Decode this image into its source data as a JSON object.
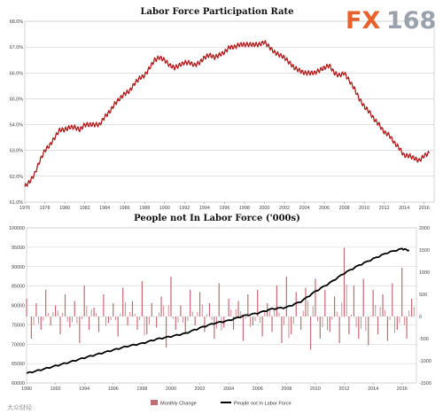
{
  "logo": {
    "fx": "FX",
    "num": "168",
    "fx_color": "#e8612c",
    "num_color": "#9aa3ad"
  },
  "watermark": "大众财经",
  "colors": {
    "series_red": "#b11a1a",
    "bar_red": "#c46a72",
    "line_black": "#000000"
  },
  "chart_data": [
    {
      "type": "line",
      "title": "Labor Force Participation Rate",
      "xlabel": "",
      "ylabel": "",
      "xlim": [
        1976,
        2017
      ],
      "ylim": [
        61.0,
        68.0
      ],
      "x_ticks": [
        "1976",
        "1978",
        "1980",
        "1982",
        "1984",
        "1986",
        "1988",
        "1990",
        "1992",
        "1994",
        "1996",
        "1998",
        "2000",
        "2002",
        "2004",
        "2006",
        "2008",
        "2010",
        "2012",
        "2014",
        "2016"
      ],
      "y_ticks": [
        "61.0%",
        "62.0%",
        "63.0%",
        "64.0%",
        "65.0%",
        "66.0%",
        "67.0%",
        "68.0%"
      ],
      "grid": true,
      "series": [
        {
          "name": "",
          "color": "#b11a1a",
          "x": [
            1976.0,
            1976.5,
            1977.0,
            1977.5,
            1978.0,
            1978.5,
            1979.0,
            1979.5,
            1980.0,
            1980.5,
            1981.0,
            1981.5,
            1982.0,
            1982.5,
            1983.0,
            1983.5,
            1984.0,
            1984.5,
            1985.0,
            1985.5,
            1986.0,
            1986.5,
            1987.0,
            1987.5,
            1988.0,
            1988.5,
            1989.0,
            1989.5,
            1990.0,
            1990.5,
            1991.0,
            1991.5,
            1992.0,
            1992.5,
            1993.0,
            1993.5,
            1994.0,
            1994.5,
            1995.0,
            1995.5,
            1996.0,
            1996.5,
            1997.0,
            1997.5,
            1998.0,
            1998.5,
            1999.0,
            1999.5,
            2000.0,
            2000.5,
            2001.0,
            2001.5,
            2002.0,
            2002.5,
            2003.0,
            2003.5,
            2004.0,
            2004.5,
            2005.0,
            2005.5,
            2006.0,
            2006.5,
            2007.0,
            2007.5,
            2008.0,
            2008.5,
            2009.0,
            2009.5,
            2010.0,
            2010.5,
            2011.0,
            2011.5,
            2012.0,
            2012.5,
            2013.0,
            2013.5,
            2014.0,
            2014.5,
            2015.0,
            2015.5,
            2016.0,
            2016.5
          ],
          "y": [
            61.6,
            61.8,
            62.1,
            62.6,
            63.0,
            63.2,
            63.5,
            63.8,
            63.8,
            63.9,
            63.9,
            63.8,
            64.0,
            64.0,
            64.0,
            64.0,
            64.3,
            64.5,
            64.8,
            65.0,
            65.2,
            65.3,
            65.6,
            65.8,
            65.9,
            66.2,
            66.5,
            66.6,
            66.5,
            66.3,
            66.2,
            66.3,
            66.4,
            66.4,
            66.3,
            66.4,
            66.6,
            66.7,
            66.6,
            66.7,
            66.8,
            67.0,
            67.0,
            67.1,
            67.1,
            67.1,
            67.1,
            67.1,
            67.2,
            67.0,
            66.8,
            66.7,
            66.6,
            66.4,
            66.2,
            66.1,
            66.0,
            66.0,
            66.0,
            66.1,
            66.2,
            66.3,
            66.0,
            65.9,
            66.0,
            65.7,
            65.4,
            65.0,
            64.7,
            64.5,
            64.2,
            64.0,
            63.7,
            63.6,
            63.3,
            63.1,
            62.8,
            62.8,
            62.7,
            62.6,
            62.8,
            62.9
          ]
        }
      ]
    },
    {
      "type": "bar+line",
      "title": "People not In Labor Force ('000s)",
      "xlabel": "",
      "ylabel": "",
      "xlim": [
        1990,
        2017
      ],
      "ylim_left": [
        60000,
        100000
      ],
      "ylim_right": [
        -1500,
        2000
      ],
      "x_ticks": [
        "1990",
        "1992",
        "1994",
        "1996",
        "1998",
        "2000",
        "2002",
        "2004",
        "2006",
        "2008",
        "2010",
        "2012",
        "2014",
        "2016"
      ],
      "y_ticks_left": [
        "60000",
        "65000",
        "70000",
        "75000",
        "80000",
        "85000",
        "90000",
        "95000",
        "100000"
      ],
      "y_ticks_right": [
        "-1500",
        "-1000",
        "-500",
        "0",
        "500",
        "1000",
        "1500",
        "2000"
      ],
      "grid": true,
      "legend_position": "bottom",
      "legend": [
        "Monthly Change",
        "People not In Labor Force"
      ],
      "series": [
        {
          "name": "Monthly Change",
          "axis": "right",
          "kind": "bar",
          "color": "#c46a72",
          "x": [
            1990.0,
            1990.33,
            1990.67,
            1991.0,
            1991.33,
            1991.67,
            1992.0,
            1992.33,
            1992.67,
            1993.0,
            1993.33,
            1993.67,
            1994.0,
            1994.33,
            1994.67,
            1995.0,
            1995.33,
            1995.67,
            1996.0,
            1996.33,
            1996.67,
            1997.0,
            1997.33,
            1997.67,
            1998.0,
            1998.33,
            1998.67,
            1999.0,
            1999.33,
            1999.67,
            2000.0,
            2000.33,
            2000.67,
            2001.0,
            2001.33,
            2001.67,
            2002.0,
            2002.33,
            2002.67,
            2003.0,
            2003.33,
            2003.67,
            2004.0,
            2004.33,
            2004.67,
            2005.0,
            2005.33,
            2005.67,
            2006.0,
            2006.33,
            2006.67,
            2007.0,
            2007.33,
            2007.67,
            2008.0,
            2008.33,
            2008.67,
            2009.0,
            2009.33,
            2009.67,
            2010.0,
            2010.33,
            2010.67,
            2011.0,
            2011.33,
            2011.67,
            2012.0,
            2012.33,
            2012.67,
            2013.0,
            2013.33,
            2013.67,
            2014.0,
            2014.33,
            2014.67,
            2015.0,
            2015.33,
            2015.67,
            2016.0,
            2016.33,
            2016.67
          ],
          "y": [
            400,
            -500,
            300,
            -300,
            600,
            -200,
            250,
            -400,
            500,
            -250,
            350,
            -600,
            700,
            -300,
            200,
            -350,
            500,
            -150,
            300,
            -450,
            650,
            -200,
            350,
            -300,
            800,
            -400,
            300,
            -250,
            450,
            -700,
            900,
            -300,
            250,
            -400,
            600,
            -200,
            550,
            -350,
            300,
            -500,
            750,
            -250,
            400,
            -300,
            350,
            -550,
            500,
            -200,
            600,
            -450,
            300,
            -350,
            700,
            -600,
            900,
            -400,
            550,
            -300,
            650,
            -750,
            850,
            -500,
            600,
            -350,
            450,
            -600,
            1550,
            -400,
            700,
            -500,
            850,
            -650,
            600,
            -400,
            500,
            -550,
            750,
            -300,
            1100,
            -500,
            400
          ]
        },
        {
          "name": "People not In Labor Force",
          "axis": "left",
          "kind": "line",
          "color": "#000000",
          "x": [
            1990,
            1991,
            1992,
            1993,
            1994,
            1995,
            1996,
            1997,
            1998,
            1999,
            2000,
            2001,
            2002,
            2003,
            2004,
            2005,
            2006,
            2007,
            2008,
            2009,
            2010,
            2011,
            2012,
            2013,
            2014,
            2015,
            2016,
            2016.5
          ],
          "y": [
            62500,
            63400,
            64400,
            65400,
            66500,
            67500,
            68500,
            69500,
            70200,
            71300,
            72000,
            72800,
            74200,
            75400,
            76100,
            77300,
            78000,
            79100,
            79500,
            81000,
            83600,
            85800,
            88300,
            90300,
            92000,
            93600,
            94600,
            94200
          ]
        }
      ]
    }
  ]
}
